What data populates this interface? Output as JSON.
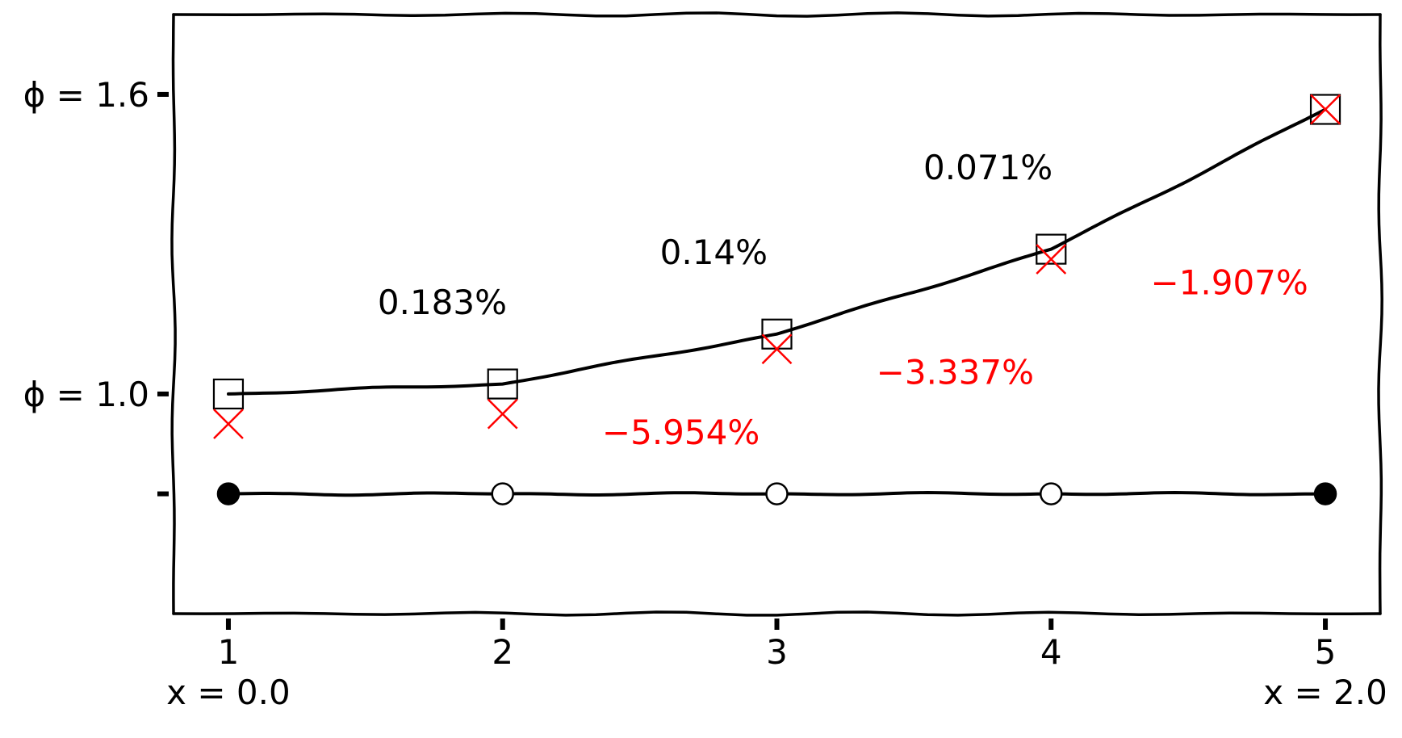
{
  "chart_data": {
    "type": "line",
    "x": [
      1,
      2,
      3,
      4,
      5
    ],
    "xticks": [
      "1",
      "2",
      "3",
      "4",
      "5"
    ],
    "x_sublabels": [
      {
        "x": 1,
        "text": "x = 0.0"
      },
      {
        "x": 5,
        "text": "x = 2.0"
      }
    ],
    "yticks": [
      {
        "value": 1.6,
        "label": "ϕ = 1.6"
      },
      {
        "value": 1.0,
        "label": "ϕ = 1.0"
      },
      {
        "value": 0.8,
        "label": ""
      }
    ],
    "ylim": [
      0.56,
      1.76
    ],
    "xlim": [
      0.8,
      5.2
    ],
    "grid": false,
    "series": [
      {
        "role": "reference",
        "marker": "square",
        "line": true,
        "color": "#000000",
        "values": [
          1.0,
          1.02,
          1.12,
          1.29,
          1.57
        ]
      },
      {
        "role": "approximation",
        "marker": "x",
        "line": false,
        "color": "#ff0000",
        "values": [
          0.94,
          0.96,
          1.09,
          1.27,
          1.57
        ]
      },
      {
        "role": "nodes",
        "marker": "circle",
        "line": true,
        "color": "#000000",
        "values": [
          0.8,
          0.8,
          0.8,
          0.8,
          0.8
        ],
        "filled": [
          true,
          false,
          false,
          false,
          true
        ]
      }
    ],
    "annotations": [
      {
        "text": "0.183%",
        "x": 1.78,
        "y": 1.16,
        "color": "#000000"
      },
      {
        "text": "0.14%",
        "x": 2.77,
        "y": 1.26,
        "color": "#000000"
      },
      {
        "text": "0.071%",
        "x": 3.77,
        "y": 1.43,
        "color": "#000000"
      },
      {
        "text": "−5.954%",
        "x": 2.65,
        "y": 0.9,
        "color": "#ff0000"
      },
      {
        "text": "−3.337%",
        "x": 3.65,
        "y": 1.02,
        "color": "#ff0000"
      },
      {
        "text": "−1.907%",
        "x": 4.65,
        "y": 1.2,
        "color": "#ff0000"
      }
    ]
  }
}
